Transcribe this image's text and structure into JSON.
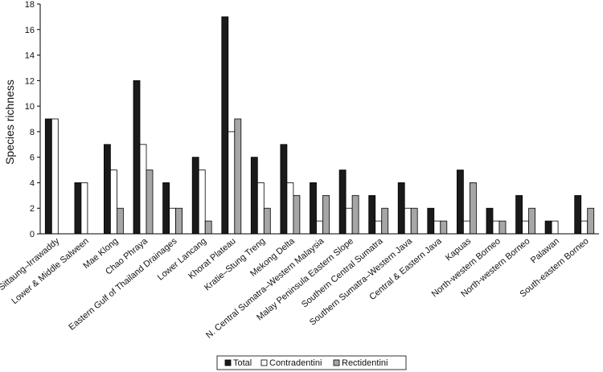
{
  "chart_data": {
    "type": "bar",
    "ylabel": "Species richness",
    "xlabel": "",
    "ylim": [
      0,
      18
    ],
    "yticks": [
      0,
      2,
      4,
      6,
      8,
      10,
      12,
      14,
      16,
      18
    ],
    "grid": false,
    "legend_position": "bottom",
    "categories": [
      "Sittaung–Irrawaddy",
      "Lower & Middle Salween",
      "Mae Klong",
      "Chao Phraya",
      "Eastern Gulf of Thailand Drainages",
      "Lower Lancang",
      "Khorat Plateau",
      "Kratie–Stung Treng",
      "Mekong Delta",
      "N. Central Sumatra–Western Malaysia",
      "Malay Peninsula Eastern Slope",
      "Southern Central Sumatra",
      "Southern Sumatra–Western Java",
      "Central & Eastern Java",
      "Kapuas",
      "North-western Borneo",
      "North-western Borneo",
      "Palawan",
      "South-eastern Borneo"
    ],
    "series": [
      {
        "name": "Total",
        "color": "#1a1a1a",
        "values": [
          9,
          4,
          7,
          12,
          4,
          6,
          17,
          6,
          7,
          4,
          5,
          3,
          4,
          2,
          5,
          2,
          3,
          1,
          3
        ]
      },
      {
        "name": "Contradentini",
        "color": "#ffffff",
        "values": [
          9,
          4,
          5,
          7,
          2,
          5,
          8,
          4,
          4,
          1,
          2,
          1,
          2,
          1,
          1,
          1,
          1,
          1,
          1
        ]
      },
      {
        "name": "Rectidentini",
        "color": "#a6a6a6",
        "values": [
          0,
          0,
          2,
          5,
          2,
          1,
          9,
          2,
          3,
          3,
          3,
          2,
          2,
          1,
          4,
          1,
          2,
          0,
          2
        ]
      }
    ]
  }
}
